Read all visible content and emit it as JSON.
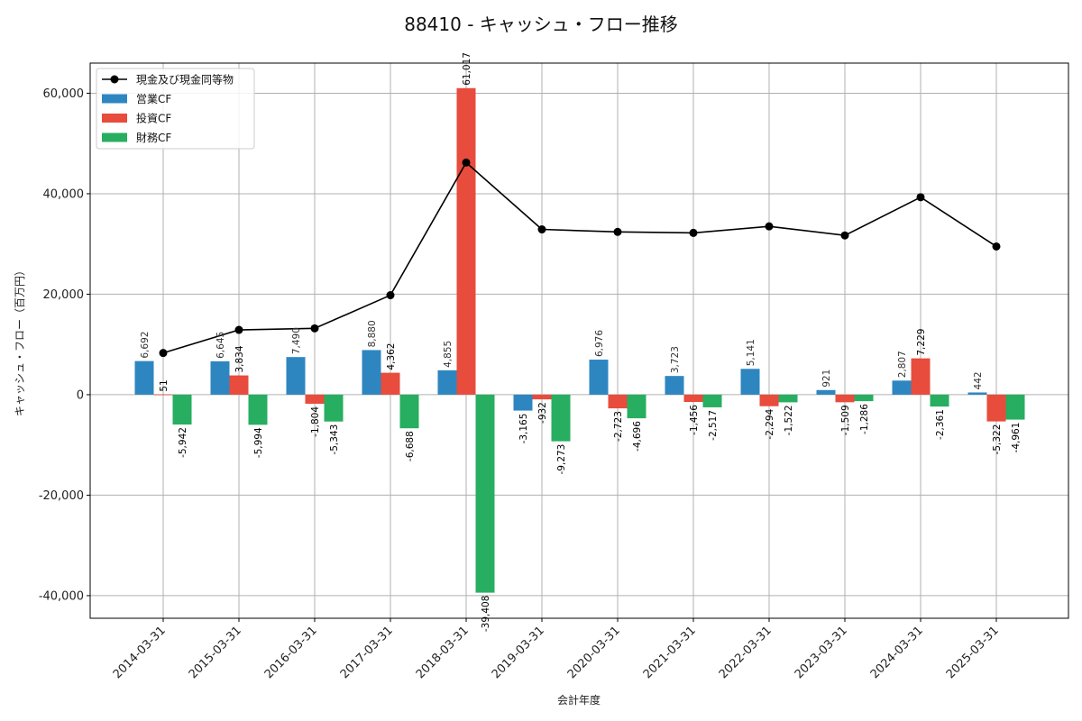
{
  "chart_data": {
    "type": "bar",
    "title": "88410 - キャッシュ・フロー推移",
    "xlabel": "会計年度",
    "ylabel": "キャッシュ・フロー（百万円）",
    "categories": [
      "2014-03-31",
      "2015-03-31",
      "2016-03-31",
      "2017-03-31",
      "2018-03-31",
      "2019-03-31",
      "2020-03-31",
      "2021-03-31",
      "2022-03-31",
      "2023-03-31",
      "2024-03-31",
      "2025-03-31"
    ],
    "ylim": [
      -44500,
      66000
    ],
    "yticks": [
      -40000,
      -20000,
      0,
      20000,
      40000,
      60000
    ],
    "ytick_labels": [
      "-40,000",
      "-20,000",
      "0",
      "20,000",
      "40,000",
      "60,000"
    ],
    "grid": true,
    "legend_position": "upper-left",
    "series": [
      {
        "name": "営業CF",
        "kind": "bar",
        "color": "#2E86C1",
        "values": [
          6692,
          6645,
          7490,
          8880,
          4855,
          -3165,
          6976,
          3723,
          5141,
          921,
          2807,
          442
        ],
        "labels": [
          "6,692",
          "6,645",
          "7,490",
          "8,880",
          "4,855",
          "-3,165",
          "6,976",
          "3,723",
          "5,141",
          "921",
          "2,807",
          "442"
        ]
      },
      {
        "name": "投資CF",
        "kind": "bar",
        "color": "#E74C3C",
        "values": [
          51,
          3834,
          -1804,
          4362,
          61017,
          -932,
          -2723,
          -1456,
          -2294,
          -1509,
          7229,
          -5322
        ],
        "labels": [
          "51",
          "3,834",
          "-1,804",
          "4,362",
          "61,017",
          "-932",
          "-2,723",
          "-1,456",
          "-2,294",
          "-1,509",
          "7,229",
          "-5,322"
        ]
      },
      {
        "name": "財務CF",
        "kind": "bar",
        "color": "#27AE60",
        "values": [
          -5942,
          -5994,
          -5343,
          -6688,
          -39408,
          -9273,
          -4696,
          -2517,
          -1522,
          -1286,
          -2361,
          -4961
        ],
        "labels": [
          "-5,942",
          "-5,994",
          "-5,343",
          "-6,688",
          "-39,408",
          "-9,273",
          "-4,696",
          "-2,517",
          "-1,522",
          "-1,286",
          "-2,361",
          "-4,961"
        ]
      },
      {
        "name": "現金及び現金同等物",
        "kind": "line",
        "color": "#000000",
        "values": [
          8300,
          12900,
          13200,
          19800,
          46200,
          32900,
          32400,
          32200,
          33500,
          31700,
          39300,
          29500
        ]
      }
    ]
  }
}
